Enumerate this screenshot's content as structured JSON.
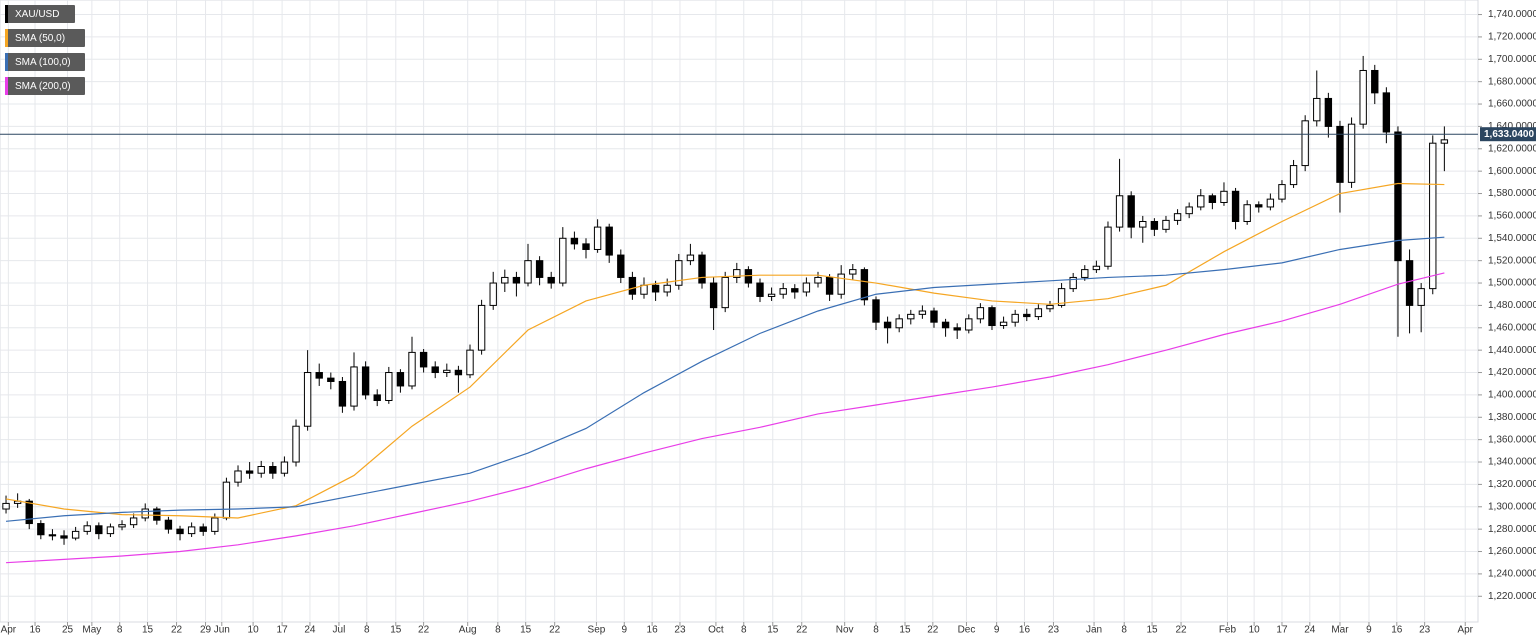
{
  "chart_data": {
    "type": "candlestick",
    "symbol": "XAU/USD",
    "xlim": [
      -0.52,
      126.9
    ],
    "ylim": [
      1197,
      1753
    ],
    "grid": true,
    "up_color": "#ffffff",
    "down_color": "#000000",
    "xticks": [
      {
        "value": 0.2,
        "label": "Apr"
      },
      {
        "value": 2.5,
        "label": "16"
      },
      {
        "value": 5.3,
        "label": "25"
      },
      {
        "value": 7.4,
        "label": "May"
      },
      {
        "value": 9.8,
        "label": "8"
      },
      {
        "value": 12.2,
        "label": "15"
      },
      {
        "value": 14.7,
        "label": "22"
      },
      {
        "value": 17.2,
        "label": "29"
      },
      {
        "value": 18.6,
        "label": "Jun"
      },
      {
        "value": 21.3,
        "label": "10"
      },
      {
        "value": 23.8,
        "label": "17"
      },
      {
        "value": 26.2,
        "label": "24"
      },
      {
        "value": 28.7,
        "label": "Jul"
      },
      {
        "value": 31.1,
        "label": "8"
      },
      {
        "value": 33.6,
        "label": "15"
      },
      {
        "value": 36.0,
        "label": "22"
      },
      {
        "value": 39.8,
        "label": "Aug"
      },
      {
        "value": 42.4,
        "label": "8"
      },
      {
        "value": 44.8,
        "label": "15"
      },
      {
        "value": 47.3,
        "label": "22"
      },
      {
        "value": 50.9,
        "label": "Sep"
      },
      {
        "value": 53.3,
        "label": "9"
      },
      {
        "value": 55.7,
        "label": "16"
      },
      {
        "value": 58.1,
        "label": "23"
      },
      {
        "value": 61.2,
        "label": "Oct"
      },
      {
        "value": 63.6,
        "label": "8"
      },
      {
        "value": 66.1,
        "label": "15"
      },
      {
        "value": 68.6,
        "label": "22"
      },
      {
        "value": 72.3,
        "label": "Nov"
      },
      {
        "value": 75.0,
        "label": "8"
      },
      {
        "value": 77.5,
        "label": "15"
      },
      {
        "value": 79.9,
        "label": "22"
      },
      {
        "value": 82.8,
        "label": "Dec"
      },
      {
        "value": 85.4,
        "label": "9"
      },
      {
        "value": 87.8,
        "label": "16"
      },
      {
        "value": 90.3,
        "label": "23"
      },
      {
        "value": 93.8,
        "label": "Jan"
      },
      {
        "value": 96.4,
        "label": "8"
      },
      {
        "value": 98.8,
        "label": "15"
      },
      {
        "value": 101.3,
        "label": "22"
      },
      {
        "value": 105.3,
        "label": "Feb"
      },
      {
        "value": 107.6,
        "label": "10"
      },
      {
        "value": 110.0,
        "label": "17"
      },
      {
        "value": 112.4,
        "label": "24"
      },
      {
        "value": 115.0,
        "label": "Mar"
      },
      {
        "value": 117.5,
        "label": "9"
      },
      {
        "value": 119.9,
        "label": "16"
      },
      {
        "value": 122.3,
        "label": "23"
      },
      {
        "value": 125.8,
        "label": "Apr"
      }
    ],
    "yticks": [
      {
        "value": 1220,
        "label": "1,220.0000"
      },
      {
        "value": 1240,
        "label": "1,240.0000"
      },
      {
        "value": 1260,
        "label": "1,260.0000"
      },
      {
        "value": 1280,
        "label": "1,280.0000"
      },
      {
        "value": 1300,
        "label": "1,300.0000"
      },
      {
        "value": 1320,
        "label": "1,320.0000"
      },
      {
        "value": 1340,
        "label": "1,340.0000"
      },
      {
        "value": 1360,
        "label": "1,360.0000"
      },
      {
        "value": 1380,
        "label": "1,380.0000"
      },
      {
        "value": 1400,
        "label": "1,400.0000"
      },
      {
        "value": 1420,
        "label": "1,420.0000"
      },
      {
        "value": 1440,
        "label": "1,440.0000"
      },
      {
        "value": 1460,
        "label": "1,460.0000"
      },
      {
        "value": 1480,
        "label": "1,480.0000"
      },
      {
        "value": 1500,
        "label": "1,500.0000"
      },
      {
        "value": 1520,
        "label": "1,520.0000"
      },
      {
        "value": 1540,
        "label": "1,540.0000"
      },
      {
        "value": 1560,
        "label": "1,560.0000"
      },
      {
        "value": 1580,
        "label": "1,580.0000"
      },
      {
        "value": 1600,
        "label": "1,600.0000"
      },
      {
        "value": 1620,
        "label": "1,620.0000"
      },
      {
        "value": 1640,
        "label": "1,640.0000"
      },
      {
        "value": 1660,
        "label": "1,660.0000"
      },
      {
        "value": 1680,
        "label": "1,680.0000"
      },
      {
        "value": 1700,
        "label": "1,700.0000"
      },
      {
        "value": 1720,
        "label": "1,720.0000"
      },
      {
        "value": 1740,
        "label": "1,740.0000"
      }
    ],
    "last_price": {
      "value": 1633.04,
      "label": "1,633.0400"
    },
    "ohlc": [
      [
        1298,
        1310,
        1294,
        1303
      ],
      [
        1303,
        1312,
        1299,
        1305
      ],
      [
        1305,
        1307,
        1280,
        1285
      ],
      [
        1285,
        1288,
        1271,
        1275
      ],
      [
        1275,
        1280,
        1270,
        1274
      ],
      [
        1274,
        1279,
        1266,
        1272
      ],
      [
        1272,
        1282,
        1270,
        1278
      ],
      [
        1278,
        1287,
        1275,
        1283
      ],
      [
        1283,
        1286,
        1271,
        1276
      ],
      [
        1276,
        1285,
        1273,
        1282
      ],
      [
        1282,
        1288,
        1279,
        1284
      ],
      [
        1284,
        1294,
        1281,
        1290
      ],
      [
        1290,
        1303,
        1287,
        1298
      ],
      [
        1298,
        1300,
        1284,
        1288
      ],
      [
        1288,
        1291,
        1276,
        1280
      ],
      [
        1280,
        1283,
        1270,
        1276
      ],
      [
        1276,
        1286,
        1273,
        1282
      ],
      [
        1282,
        1285,
        1274,
        1278
      ],
      [
        1278,
        1294,
        1275,
        1290
      ],
      [
        1290,
        1326,
        1288,
        1322
      ],
      [
        1322,
        1337,
        1318,
        1332
      ],
      [
        1332,
        1340,
        1325,
        1330
      ],
      [
        1330,
        1341,
        1326,
        1336
      ],
      [
        1336,
        1340,
        1325,
        1330
      ],
      [
        1330,
        1345,
        1327,
        1340
      ],
      [
        1340,
        1378,
        1336,
        1372
      ],
      [
        1372,
        1440,
        1368,
        1420
      ],
      [
        1420,
        1428,
        1408,
        1415
      ],
      [
        1415,
        1420,
        1405,
        1412
      ],
      [
        1412,
        1416,
        1384,
        1390
      ],
      [
        1390,
        1438,
        1386,
        1425
      ],
      [
        1425,
        1430,
        1396,
        1400
      ],
      [
        1400,
        1405,
        1390,
        1395
      ],
      [
        1395,
        1425,
        1392,
        1420
      ],
      [
        1420,
        1423,
        1402,
        1408
      ],
      [
        1408,
        1452,
        1405,
        1438
      ],
      [
        1438,
        1441,
        1420,
        1425
      ],
      [
        1425,
        1430,
        1415,
        1420
      ],
      [
        1420,
        1428,
        1416,
        1422
      ],
      [
        1422,
        1426,
        1402,
        1418
      ],
      [
        1418,
        1445,
        1415,
        1440
      ],
      [
        1440,
        1485,
        1436,
        1480
      ],
      [
        1480,
        1510,
        1476,
        1500
      ],
      [
        1500,
        1512,
        1492,
        1505
      ],
      [
        1505,
        1510,
        1488,
        1500
      ],
      [
        1500,
        1535,
        1497,
        1520
      ],
      [
        1520,
        1524,
        1498,
        1505
      ],
      [
        1505,
        1510,
        1495,
        1500
      ],
      [
        1500,
        1550,
        1497,
        1540
      ],
      [
        1540,
        1546,
        1530,
        1535
      ],
      [
        1535,
        1540,
        1522,
        1530
      ],
      [
        1530,
        1557,
        1527,
        1550
      ],
      [
        1550,
        1553,
        1518,
        1525
      ],
      [
        1525,
        1530,
        1500,
        1505
      ],
      [
        1505,
        1510,
        1485,
        1490
      ],
      [
        1490,
        1505,
        1486,
        1498
      ],
      [
        1498,
        1502,
        1484,
        1492
      ],
      [
        1492,
        1504,
        1488,
        1498
      ],
      [
        1498,
        1526,
        1494,
        1520
      ],
      [
        1520,
        1535,
        1516,
        1525
      ],
      [
        1525,
        1528,
        1495,
        1500
      ],
      [
        1500,
        1505,
        1458,
        1478
      ],
      [
        1478,
        1510,
        1474,
        1505
      ],
      [
        1505,
        1518,
        1500,
        1512
      ],
      [
        1512,
        1515,
        1496,
        1500
      ],
      [
        1500,
        1504,
        1483,
        1488
      ],
      [
        1488,
        1496,
        1484,
        1490
      ],
      [
        1490,
        1500,
        1486,
        1495
      ],
      [
        1495,
        1499,
        1486,
        1492
      ],
      [
        1492,
        1505,
        1488,
        1500
      ],
      [
        1500,
        1510,
        1496,
        1505
      ],
      [
        1505,
        1508,
        1484,
        1490
      ],
      [
        1490,
        1516,
        1486,
        1508
      ],
      [
        1508,
        1517,
        1503,
        1512
      ],
      [
        1512,
        1514,
        1480,
        1485
      ],
      [
        1485,
        1488,
        1458,
        1465
      ],
      [
        1465,
        1470,
        1446,
        1460
      ],
      [
        1460,
        1472,
        1456,
        1468
      ],
      [
        1468,
        1476,
        1463,
        1472
      ],
      [
        1472,
        1480,
        1468,
        1475
      ],
      [
        1475,
        1478,
        1460,
        1465
      ],
      [
        1465,
        1468,
        1452,
        1460
      ],
      [
        1460,
        1464,
        1450,
        1458
      ],
      [
        1458,
        1472,
        1455,
        1468
      ],
      [
        1468,
        1482,
        1464,
        1478
      ],
      [
        1478,
        1480,
        1458,
        1462
      ],
      [
        1462,
        1470,
        1459,
        1465
      ],
      [
        1465,
        1476,
        1461,
        1472
      ],
      [
        1472,
        1477,
        1466,
        1470
      ],
      [
        1470,
        1481,
        1467,
        1477
      ],
      [
        1477,
        1484,
        1474,
        1480
      ],
      [
        1480,
        1500,
        1478,
        1495
      ],
      [
        1495,
        1509,
        1492,
        1505
      ],
      [
        1505,
        1516,
        1502,
        1512
      ],
      [
        1512,
        1520,
        1509,
        1515
      ],
      [
        1515,
        1555,
        1512,
        1550
      ],
      [
        1550,
        1611,
        1546,
        1578
      ],
      [
        1578,
        1582,
        1540,
        1550
      ],
      [
        1550,
        1560,
        1536,
        1555
      ],
      [
        1555,
        1558,
        1542,
        1548
      ],
      [
        1548,
        1560,
        1545,
        1556
      ],
      [
        1556,
        1566,
        1552,
        1562
      ],
      [
        1562,
        1572,
        1558,
        1568
      ],
      [
        1568,
        1584,
        1565,
        1578
      ],
      [
        1578,
        1580,
        1566,
        1572
      ],
      [
        1572,
        1590,
        1569,
        1582
      ],
      [
        1582,
        1585,
        1548,
        1555
      ],
      [
        1555,
        1574,
        1552,
        1570
      ],
      [
        1570,
        1573,
        1563,
        1568
      ],
      [
        1568,
        1580,
        1565,
        1575
      ],
      [
        1575,
        1592,
        1572,
        1588
      ],
      [
        1588,
        1610,
        1585,
        1605
      ],
      [
        1605,
        1650,
        1600,
        1645
      ],
      [
        1645,
        1690,
        1640,
        1665
      ],
      [
        1665,
        1670,
        1630,
        1640
      ],
      [
        1640,
        1645,
        1563,
        1590
      ],
      [
        1590,
        1648,
        1585,
        1642
      ],
      [
        1642,
        1703,
        1638,
        1690
      ],
      [
        1690,
        1695,
        1660,
        1670
      ],
      [
        1670,
        1675,
        1625,
        1635
      ],
      [
        1635,
        1640,
        1452,
        1520
      ],
      [
        1520,
        1530,
        1455,
        1480
      ],
      [
        1480,
        1500,
        1456,
        1495
      ],
      [
        1495,
        1632,
        1490,
        1625
      ],
      [
        1625,
        1640,
        1600,
        1628
      ]
    ],
    "series": [
      {
        "name": "SMA (50,0)",
        "color": "#f5a623",
        "x": [
          0,
          5,
          10,
          15,
          20,
          25,
          30,
          35,
          40,
          45,
          50,
          55,
          60,
          65,
          70,
          75,
          80,
          85,
          90,
          95,
          100,
          105,
          110,
          115,
          120,
          124
        ],
        "values": [
          1307,
          1298,
          1293,
          1292,
          1290,
          1301,
          1328,
          1372,
          1407,
          1458,
          1484,
          1498,
          1505,
          1507,
          1507,
          1500,
          1491,
          1484,
          1481,
          1486,
          1498,
          1528,
          1555,
          1580,
          1589,
          1588
        ]
      },
      {
        "name": "SMA (100,0)",
        "color": "#3a6fb4",
        "x": [
          0,
          5,
          10,
          15,
          20,
          25,
          30,
          35,
          40,
          45,
          50,
          55,
          60,
          65,
          70,
          75,
          80,
          85,
          90,
          95,
          100,
          105,
          110,
          115,
          120,
          124
        ],
        "values": [
          1287,
          1292,
          1295,
          1297,
          1298,
          1300,
          1310,
          1320,
          1330,
          1348,
          1370,
          1402,
          1430,
          1455,
          1475,
          1490,
          1496,
          1499,
          1502,
          1505,
          1507,
          1512,
          1518,
          1530,
          1538,
          1541
        ]
      },
      {
        "name": "SMA (200,0)",
        "color": "#e83ee8",
        "x": [
          0,
          5,
          10,
          15,
          20,
          25,
          30,
          35,
          40,
          45,
          50,
          55,
          60,
          65,
          70,
          75,
          80,
          85,
          90,
          95,
          100,
          105,
          110,
          115,
          120,
          124
        ],
        "values": [
          1250,
          1253,
          1256,
          1260,
          1266,
          1274,
          1283,
          1294,
          1305,
          1318,
          1334,
          1348,
          1361,
          1371,
          1383,
          1391,
          1399,
          1407,
          1416,
          1427,
          1440,
          1454,
          1466,
          1481,
          1499,
          1509
        ]
      }
    ]
  }
}
